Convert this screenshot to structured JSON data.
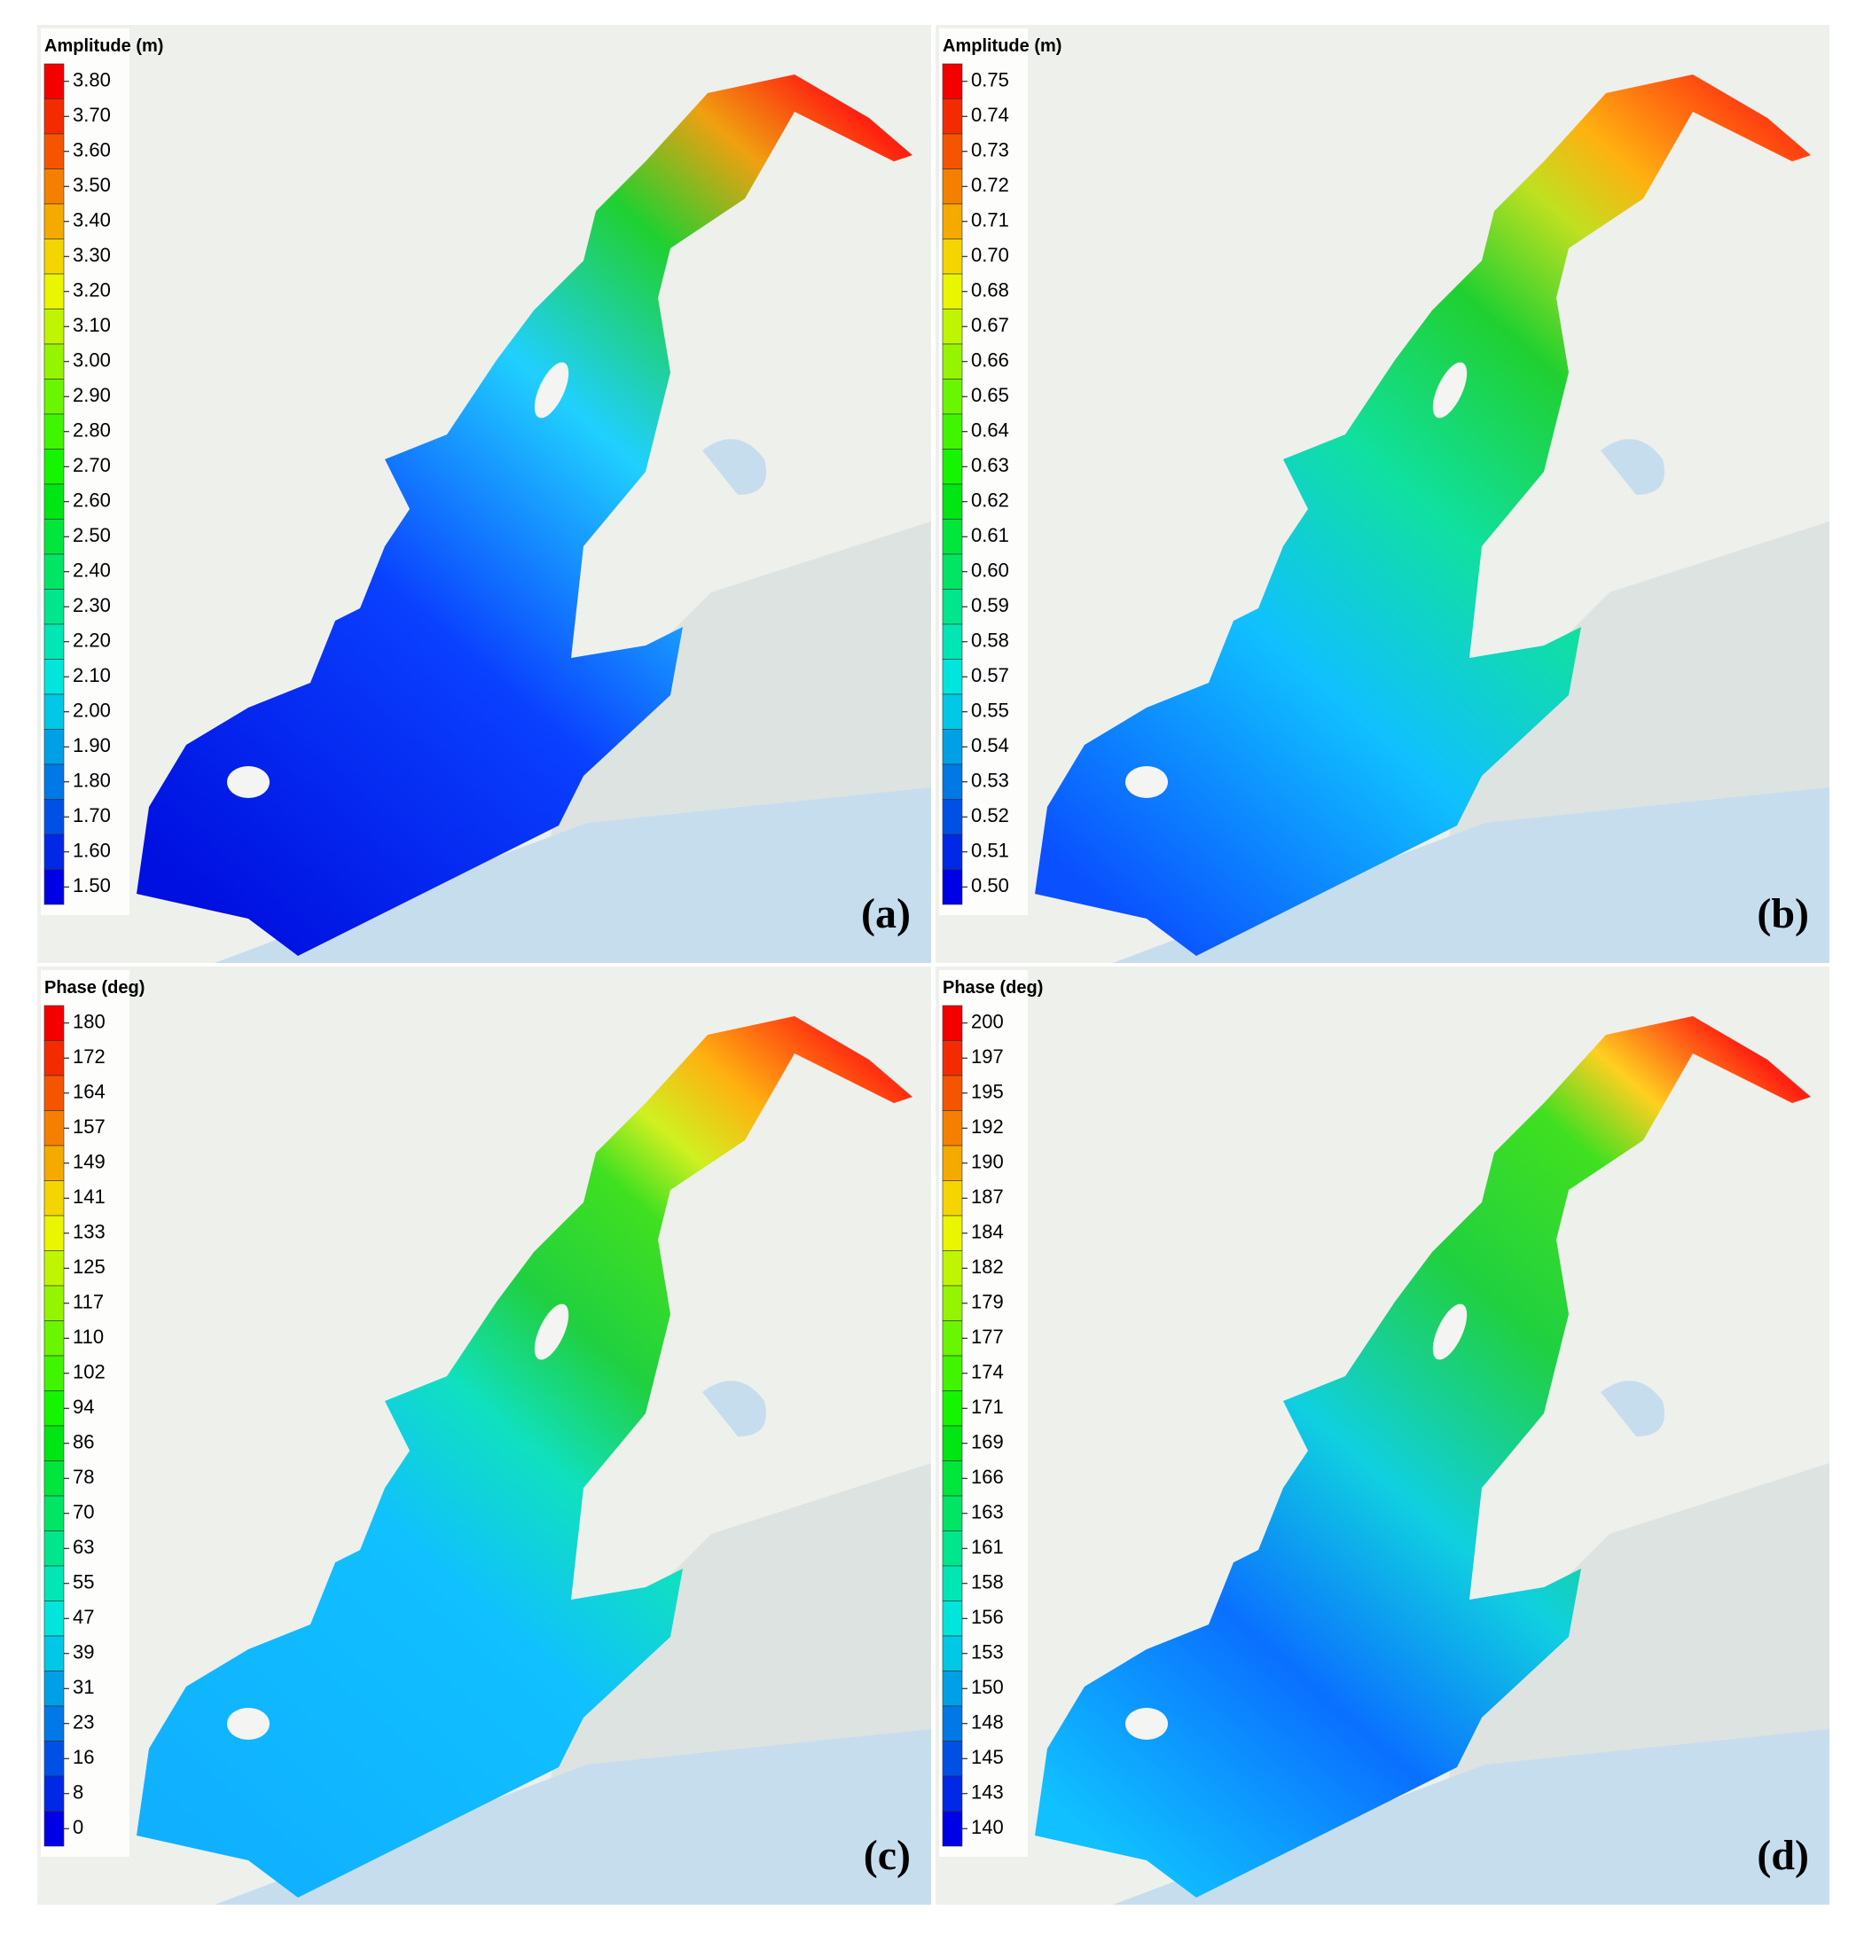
{
  "panels": [
    {
      "legend": {
        "title": "Amplitude (m)",
        "labels": [
          "3.80",
          "3.70",
          "3.60",
          "3.50",
          "3.40",
          "3.30",
          "3.20",
          "3.10",
          "3.00",
          "2.90",
          "2.80",
          "2.70",
          "2.60",
          "2.50",
          "2.40",
          "2.30",
          "2.20",
          "2.10",
          "2.00",
          "1.90",
          "1.80",
          "1.70",
          "1.60",
          "1.50"
        ]
      },
      "label": "(a)"
    },
    {
      "legend": {
        "title": "Amplitude (m)",
        "labels": [
          "0.75",
          "0.74",
          "0.73",
          "0.72",
          "0.71",
          "0.70",
          "0.68",
          "0.67",
          "0.66",
          "0.65",
          "0.64",
          "0.63",
          "0.62",
          "0.61",
          "0.60",
          "0.59",
          "0.58",
          "0.57",
          "0.55",
          "0.54",
          "0.53",
          "0.52",
          "0.51",
          "0.50"
        ]
      },
      "label": "(b)"
    },
    {
      "legend": {
        "title": "Phase (deg)",
        "labels": [
          "180",
          "172",
          "164",
          "157",
          "149",
          "141",
          "133",
          "125",
          "117",
          "110",
          "102",
          "94",
          "86",
          "78",
          "70",
          "63",
          "55",
          "47",
          "39",
          "31",
          "23",
          "16",
          "8",
          "0"
        ]
      },
      "label": "(c)"
    },
    {
      "legend": {
        "title": "Phase (deg)",
        "labels": [
          "200",
          "197",
          "195",
          "192",
          "190",
          "187",
          "184",
          "182",
          "179",
          "177",
          "174",
          "171",
          "169",
          "166",
          "163",
          "161",
          "158",
          "156",
          "153",
          "150",
          "148",
          "145",
          "143",
          "140"
        ]
      },
      "label": "(d)"
    }
  ]
}
